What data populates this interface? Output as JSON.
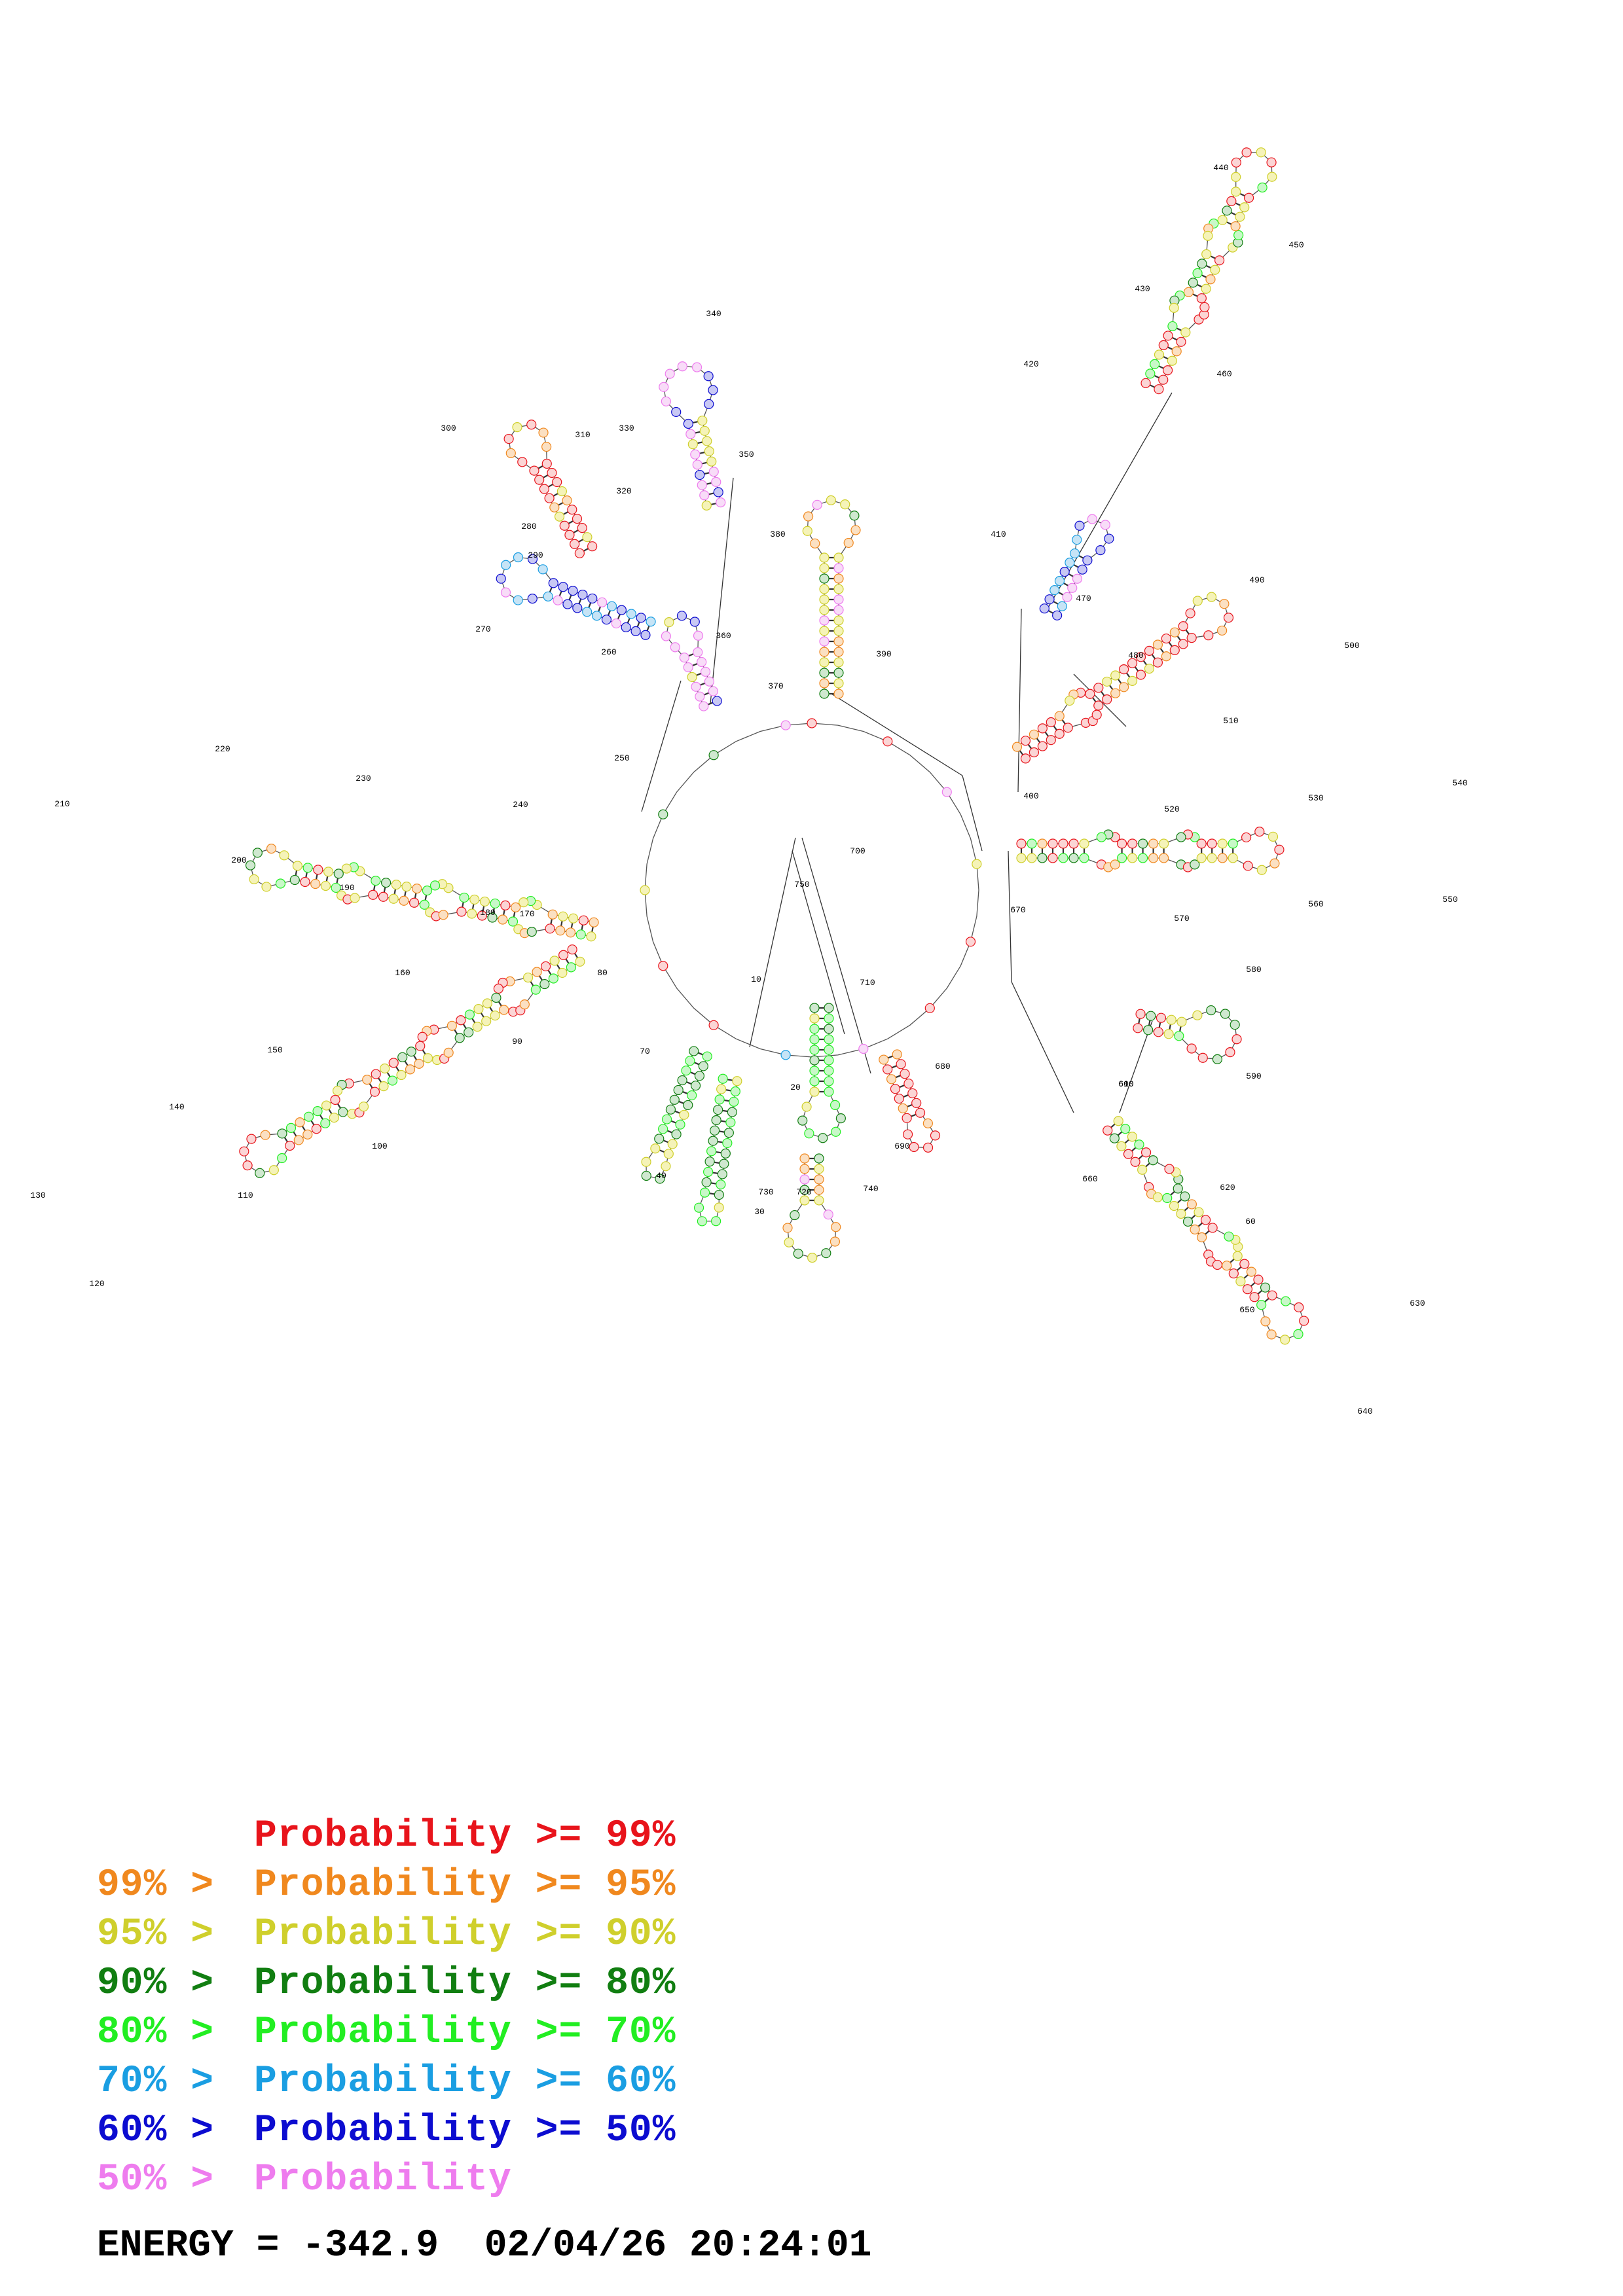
{
  "legend": [
    {
      "prefix": "",
      "text": "Probability >= 99%",
      "color": "#e8141b"
    },
    {
      "prefix": "99% >",
      "text": "Probability >= 95%",
      "color": "#f0881e"
    },
    {
      "prefix": "95% >",
      "text": "Probability >= 90%",
      "color": "#cfcf2c"
    },
    {
      "prefix": "90% >",
      "text": "Probability >= 80%",
      "color": "#117e11"
    },
    {
      "prefix": "80% >",
      "text": "Probability >= 70%",
      "color": "#22ee22"
    },
    {
      "prefix": "70% >",
      "text": "Probability >= 60%",
      "color": "#1a9ee2"
    },
    {
      "prefix": "60% >",
      "text": "Probability >= 50%",
      "color": "#0c0cd0"
    },
    {
      "prefix": "50% >",
      "text": "Probability",
      "color": "#ee7cee"
    }
  ],
  "footer": {
    "energy_label": "ENERGY =",
    "energy_value": "-342.9",
    "date": "02/04/26",
    "time": "20:24:01"
  },
  "diagram": {
    "position_labels": [
      "10",
      "20",
      "30",
      "40",
      "60",
      "70",
      "80",
      "90",
      "100",
      "110",
      "120",
      "130",
      "140",
      "150",
      "160",
      "170",
      "180",
      "190",
      "200",
      "210",
      "220",
      "230",
      "240",
      "250",
      "260",
      "270",
      "280",
      "290",
      "300",
      "310",
      "320",
      "330",
      "340",
      "350",
      "360",
      "370",
      "380",
      "390",
      "400",
      "410",
      "420",
      "430",
      "440",
      "450",
      "460",
      "470",
      "480",
      "490",
      "500",
      "510",
      "520",
      "530",
      "540",
      "550",
      "560",
      "570",
      "580",
      "590",
      "600",
      "610",
      "620",
      "630",
      "640",
      "650",
      "660",
      "670",
      "680",
      "690",
      "700",
      "710",
      "720",
      "730",
      "740",
      "750",
      "760"
    ]
  }
}
